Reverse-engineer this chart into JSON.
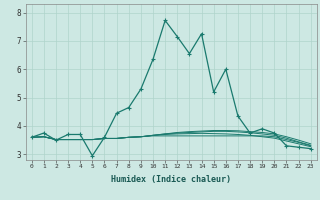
{
  "xlabel": "Humidex (Indice chaleur)",
  "xlim": [
    -0.5,
    23.5
  ],
  "ylim": [
    2.8,
    8.3
  ],
  "xticks": [
    0,
    1,
    2,
    3,
    4,
    5,
    6,
    7,
    8,
    9,
    10,
    11,
    12,
    13,
    14,
    15,
    16,
    17,
    18,
    19,
    20,
    21,
    22,
    23
  ],
  "yticks": [
    3,
    4,
    5,
    6,
    7,
    8
  ],
  "background_color": "#cde8e3",
  "line_color": "#1a7a6e",
  "grid_color": "#b0d4cc",
  "main_line": [
    3.6,
    3.75,
    3.5,
    3.7,
    3.7,
    2.95,
    3.6,
    4.45,
    4.65,
    5.3,
    6.35,
    7.72,
    7.15,
    6.55,
    7.25,
    5.2,
    6.0,
    4.35,
    3.75,
    3.9,
    3.75,
    3.3,
    3.25,
    3.2
  ],
  "flat_lines": [
    [
      3.6,
      3.62,
      3.52,
      3.52,
      3.52,
      3.52,
      3.56,
      3.56,
      3.6,
      3.62,
      3.65,
      3.65,
      3.65,
      3.65,
      3.65,
      3.65,
      3.65,
      3.65,
      3.65,
      3.65,
      3.62,
      3.52,
      3.42,
      3.3
    ],
    [
      3.6,
      3.62,
      3.52,
      3.52,
      3.52,
      3.52,
      3.56,
      3.56,
      3.6,
      3.62,
      3.67,
      3.7,
      3.72,
      3.73,
      3.74,
      3.73,
      3.72,
      3.7,
      3.67,
      3.62,
      3.57,
      3.47,
      3.37,
      3.27
    ],
    [
      3.6,
      3.62,
      3.52,
      3.52,
      3.52,
      3.52,
      3.56,
      3.56,
      3.6,
      3.62,
      3.67,
      3.72,
      3.75,
      3.77,
      3.79,
      3.81,
      3.81,
      3.79,
      3.76,
      3.72,
      3.67,
      3.57,
      3.44,
      3.32
    ],
    [
      3.6,
      3.62,
      3.52,
      3.52,
      3.52,
      3.52,
      3.56,
      3.56,
      3.6,
      3.62,
      3.67,
      3.72,
      3.77,
      3.8,
      3.82,
      3.84,
      3.84,
      3.83,
      3.8,
      3.77,
      3.72,
      3.62,
      3.5,
      3.37
    ]
  ]
}
